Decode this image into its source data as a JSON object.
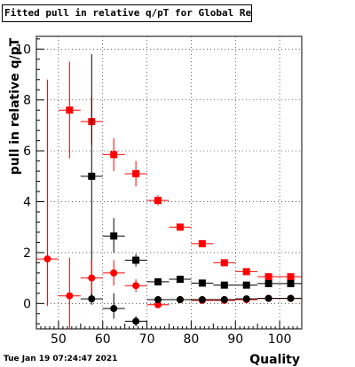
{
  "header": {
    "title": "Fitted pull in relative q/pT for Global Rec All NoHits"
  },
  "footer": {
    "timestamp": "Tue Jan 19 07:24:47 2021"
  },
  "chart_data": {
    "type": "scatter",
    "title": "Fitted pull in relative q/pT for Global Rec All NoHits",
    "xlabel": "Quality",
    "ylabel": "pull in relative q/pT",
    "xlim": [
      45,
      105
    ],
    "ylim": [
      -1,
      10.5
    ],
    "xticks": [
      "50",
      "60",
      "70",
      "80",
      "90",
      "100"
    ],
    "yticks": [
      "0",
      "2",
      "4",
      "6",
      "8",
      "10"
    ],
    "grid": true,
    "series": [
      {
        "marker": "square",
        "color": "#ff0000",
        "points": [
          {
            "x": 52.5,
            "y": 7.6,
            "xerr": 2.5,
            "ylo": 5.7,
            "yhi": 9.5
          },
          {
            "x": 57.5,
            "y": 7.15,
            "xerr": 2.5,
            "ylo": 6.25,
            "yhi": 8.1
          },
          {
            "x": 62.5,
            "y": 5.85,
            "xerr": 2.5,
            "ylo": 5.2,
            "yhi": 6.5
          },
          {
            "x": 67.5,
            "y": 5.1,
            "xerr": 2.5,
            "ylo": 4.6,
            "yhi": 5.6
          },
          {
            "x": 72.5,
            "y": 4.05,
            "xerr": 2.5,
            "ylo": 3.85,
            "yhi": 4.25
          },
          {
            "x": 77.5,
            "y": 3.0,
            "xerr": 2.5,
            "ylo": 2.9,
            "yhi": 3.1
          },
          {
            "x": 82.5,
            "y": 2.35,
            "xerr": 2.5,
            "ylo": 2.28,
            "yhi": 2.42
          },
          {
            "x": 87.5,
            "y": 1.6,
            "xerr": 2.5,
            "ylo": 1.54,
            "yhi": 1.66
          },
          {
            "x": 92.5,
            "y": 1.25,
            "xerr": 2.5,
            "ylo": 1.2,
            "yhi": 1.3
          },
          {
            "x": 97.5,
            "y": 1.05,
            "xerr": 2.5,
            "ylo": 1.0,
            "yhi": 1.1
          },
          {
            "x": 102.5,
            "y": 1.05,
            "xerr": 2.5,
            "ylo": 1.0,
            "yhi": 1.1
          }
        ]
      },
      {
        "marker": "square",
        "color": "#000000",
        "points": [
          {
            "x": 57.5,
            "y": 5.0,
            "xerr": 2.5,
            "ylo": 0.2,
            "yhi": 9.8
          },
          {
            "x": 62.5,
            "y": 2.65,
            "xerr": 2.5,
            "ylo": 2.0,
            "yhi": 3.35
          },
          {
            "x": 67.5,
            "y": 1.7,
            "xerr": 2.5,
            "ylo": 1.45,
            "yhi": 1.95
          },
          {
            "x": 72.5,
            "y": 0.85,
            "xerr": 2.5,
            "ylo": 0.75,
            "yhi": 0.95
          },
          {
            "x": 77.5,
            "y": 0.95,
            "xerr": 2.5,
            "ylo": 0.88,
            "yhi": 1.02
          },
          {
            "x": 82.5,
            "y": 0.8,
            "xerr": 2.5,
            "ylo": 0.75,
            "yhi": 0.85
          },
          {
            "x": 87.5,
            "y": 0.72,
            "xerr": 2.5,
            "ylo": 0.68,
            "yhi": 0.76
          },
          {
            "x": 92.5,
            "y": 0.72,
            "xerr": 2.5,
            "ylo": 0.68,
            "yhi": 0.76
          },
          {
            "x": 97.5,
            "y": 0.78,
            "xerr": 2.5,
            "ylo": 0.74,
            "yhi": 0.82
          },
          {
            "x": 102.5,
            "y": 0.78,
            "xerr": 2.5,
            "ylo": 0.74,
            "yhi": 0.82
          }
        ]
      },
      {
        "marker": "circle",
        "color": "#ff0000",
        "points": [
          {
            "x": 47.5,
            "y": 1.75,
            "xerr": 2.5,
            "ylo": -0.1,
            "yhi": 8.8
          },
          {
            "x": 52.5,
            "y": 0.3,
            "xerr": 2.5,
            "ylo": -1.0,
            "yhi": 1.8
          },
          {
            "x": 57.5,
            "y": 1.0,
            "xerr": 2.5,
            "ylo": 0.3,
            "yhi": 1.7
          },
          {
            "x": 62.5,
            "y": 1.2,
            "xerr": 2.5,
            "ylo": 0.7,
            "yhi": 1.7
          },
          {
            "x": 67.5,
            "y": 0.7,
            "xerr": 2.5,
            "ylo": 0.45,
            "yhi": 0.95
          },
          {
            "x": 72.5,
            "y": -0.05,
            "xerr": 2.5,
            "ylo": -0.12,
            "yhi": 0.02
          },
          {
            "x": 77.5,
            "y": 0.15,
            "xerr": 2.5,
            "ylo": 0.1,
            "yhi": 0.2
          },
          {
            "x": 82.5,
            "y": 0.12,
            "xerr": 2.5,
            "ylo": 0.08,
            "yhi": 0.16
          },
          {
            "x": 87.5,
            "y": 0.12,
            "xerr": 2.5,
            "ylo": 0.08,
            "yhi": 0.16
          },
          {
            "x": 92.5,
            "y": 0.15,
            "xerr": 2.5,
            "ylo": 0.11,
            "yhi": 0.19
          },
          {
            "x": 97.5,
            "y": 0.2,
            "xerr": 2.5,
            "ylo": 0.16,
            "yhi": 0.24
          },
          {
            "x": 102.5,
            "y": 0.2,
            "xerr": 2.5,
            "ylo": 0.16,
            "yhi": 0.24
          }
        ]
      },
      {
        "marker": "circle",
        "color": "#000000",
        "points": [
          {
            "x": 57.5,
            "y": 0.18,
            "xerr": 2.5,
            "ylo": -0.05,
            "yhi": 0.4
          },
          {
            "x": 62.5,
            "y": -0.2,
            "xerr": 2.5,
            "ylo": -0.6,
            "yhi": 0.4
          },
          {
            "x": 67.5,
            "y": -0.7,
            "xerr": 2.5,
            "ylo": -0.9,
            "yhi": -0.5
          },
          {
            "x": 72.5,
            "y": 0.15,
            "xerr": 2.5,
            "ylo": 0.08,
            "yhi": 0.22
          },
          {
            "x": 77.5,
            "y": 0.15,
            "xerr": 2.5,
            "ylo": 0.1,
            "yhi": 0.2
          },
          {
            "x": 82.5,
            "y": 0.15,
            "xerr": 2.5,
            "ylo": 0.11,
            "yhi": 0.19
          },
          {
            "x": 87.5,
            "y": 0.15,
            "xerr": 2.5,
            "ylo": 0.11,
            "yhi": 0.19
          },
          {
            "x": 92.5,
            "y": 0.18,
            "xerr": 2.5,
            "ylo": 0.14,
            "yhi": 0.22
          },
          {
            "x": 97.5,
            "y": 0.2,
            "xerr": 2.5,
            "ylo": 0.16,
            "yhi": 0.24
          },
          {
            "x": 102.5,
            "y": 0.2,
            "xerr": 2.5,
            "ylo": 0.16,
            "yhi": 0.24
          }
        ]
      }
    ]
  }
}
